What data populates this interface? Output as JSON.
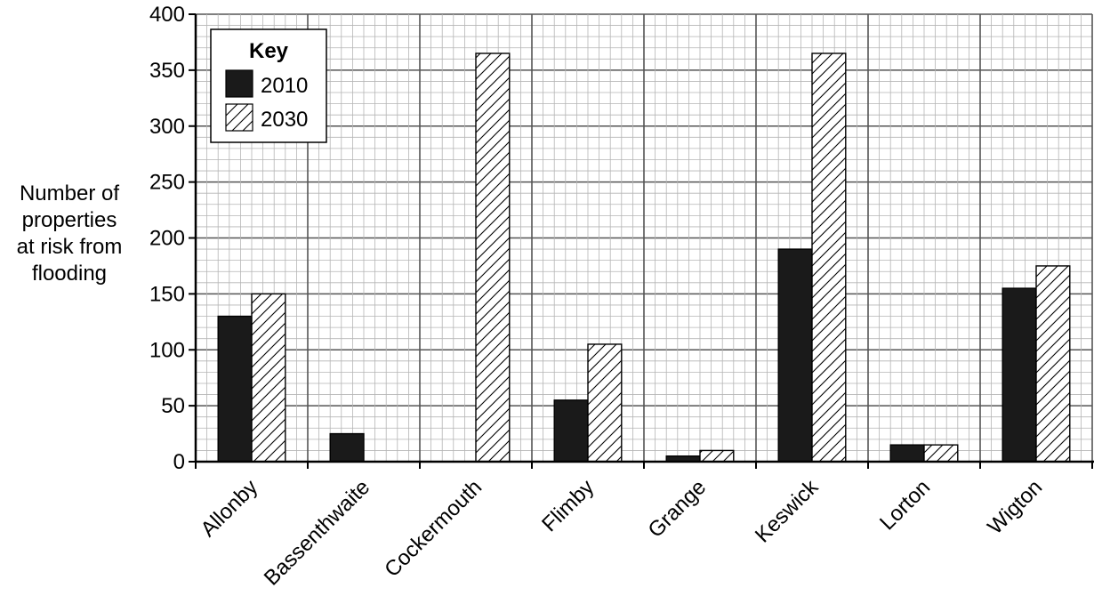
{
  "chart_data": {
    "type": "bar",
    "categories": [
      "Allonby",
      "Bassenthwaite",
      "Cockermouth",
      "Flimby",
      "Grange",
      "Keswick",
      "Lorton",
      "Wigton"
    ],
    "series": [
      {
        "name": "2010",
        "values": [
          130,
          25,
          0,
          55,
          5,
          190,
          15,
          155
        ],
        "fill": "#1a1a1a"
      },
      {
        "name": "2030",
        "values": [
          150,
          0,
          365,
          105,
          10,
          365,
          15,
          175
        ],
        "fill": "hatch"
      }
    ],
    "ylabel": [
      "Number of",
      "properties",
      "at risk from",
      "flooding"
    ],
    "xlabel": "",
    "ylim": [
      0,
      400
    ],
    "yticks": [
      "0",
      "50",
      "100",
      "150",
      "200",
      "250",
      "300",
      "350",
      "400"
    ],
    "legend": {
      "title": "Key",
      "position": "top-left"
    },
    "grid": true,
    "colors": {
      "bar_dark": "#1a1a1a",
      "major_grid": "#555555",
      "minor_grid": "#b5b5b5"
    }
  }
}
